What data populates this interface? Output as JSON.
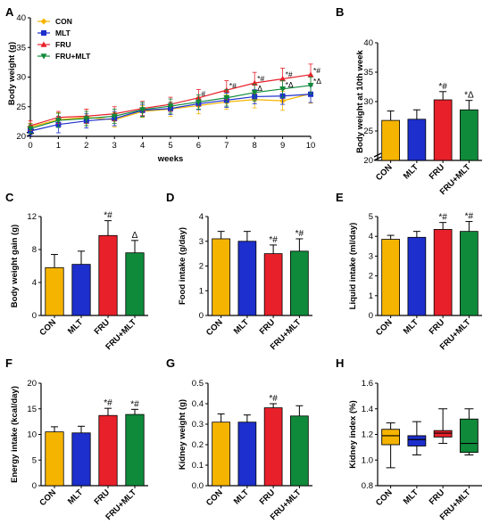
{
  "colors": {
    "CON": "#f5b400",
    "MLT": "#1d2fcc",
    "FRU": "#e8202a",
    "FRU+MLT": "#0f8a3a",
    "axis": "#000000"
  },
  "chart_data": [
    {
      "panel": "A",
      "type": "line",
      "xlabel": "weeks",
      "ylabel": "Body weight (g)",
      "xlim": [
        0,
        10
      ],
      "ylim": [
        20,
        40
      ],
      "axis_break": true,
      "x": [
        0,
        1,
        2,
        3,
        4,
        5,
        6,
        7,
        8,
        9,
        10
      ],
      "x_ticks": [
        "0",
        "1",
        "2",
        "3",
        "4",
        "5",
        "6",
        "7",
        "8",
        "9",
        "10"
      ],
      "y_ticks": [
        "20",
        "25",
        "30",
        "35",
        "40"
      ],
      "legend_position": "top-left",
      "series": [
        {
          "name": "CON",
          "marker": "diamond",
          "values": [
            21.6,
            22.8,
            23.2,
            22.8,
            24.2,
            24.6,
            25.2,
            25.8,
            26.2,
            26.0,
            27.2
          ],
          "err": [
            0.6,
            1.2,
            1.4,
            1.2,
            1.0,
            1.2,
            1.4,
            1.2,
            1.4,
            1.6,
            1.6
          ]
        },
        {
          "name": "MLT",
          "marker": "square",
          "values": [
            20.9,
            22.0,
            22.6,
            23.0,
            24.4,
            24.7,
            25.5,
            26.1,
            26.7,
            26.8,
            27.1
          ],
          "err": [
            0.8,
            1.4,
            1.2,
            1.2,
            1.0,
            1.0,
            1.0,
            1.2,
            1.2,
            1.4,
            1.4
          ]
        },
        {
          "name": "FRU",
          "marker": "triangle-up",
          "values": [
            21.8,
            23.2,
            23.4,
            23.8,
            24.7,
            25.4,
            26.5,
            27.8,
            29.0,
            29.7,
            30.4
          ],
          "err": [
            0.8,
            1.0,
            1.2,
            1.2,
            1.2,
            1.2,
            1.4,
            1.6,
            1.8,
            1.8,
            1.8
          ]
        },
        {
          "name": "FRU+MLT",
          "marker": "triangle-down",
          "values": [
            21.3,
            22.7,
            23.0,
            23.4,
            24.5,
            25.1,
            25.8,
            26.5,
            27.4,
            28.0,
            28.6
          ],
          "err": [
            0.8,
            1.2,
            1.2,
            1.2,
            1.2,
            1.2,
            1.2,
            1.4,
            1.4,
            1.4,
            1.4
          ]
        }
      ],
      "annotations": [
        {
          "x": 6,
          "text": "#",
          "series": "FRU"
        },
        {
          "x": 7,
          "text": "*#",
          "series": "FRU"
        },
        {
          "x": 8,
          "text": "*#",
          "series": "FRU"
        },
        {
          "x": 9,
          "text": "*#",
          "series": "FRU"
        },
        {
          "x": 10,
          "text": "*#",
          "series": "FRU"
        },
        {
          "x": 8,
          "text": "Δ",
          "series": "FRU+MLT"
        },
        {
          "x": 9,
          "text": "*Δ",
          "series": "FRU+MLT"
        },
        {
          "x": 10,
          "text": "*Δ",
          "series": "FRU+MLT"
        }
      ]
    },
    {
      "panel": "B",
      "type": "bar",
      "title": "",
      "ylabel": "Body weight at 10th week",
      "categories": [
        "CON",
        "MLT",
        "FRU",
        "FRU+MLT"
      ],
      "values": [
        26.8,
        27.0,
        30.3,
        28.6
      ],
      "err": [
        1.6,
        1.6,
        1.4,
        1.6
      ],
      "ylim": [
        20,
        40
      ],
      "y_ticks": [
        "20",
        "25",
        "30",
        "35",
        "40"
      ],
      "axis_break": true,
      "annotations": [
        "",
        "",
        "*#",
        "*Δ"
      ]
    },
    {
      "panel": "C",
      "type": "bar",
      "ylabel": "Body weight gain (g)",
      "categories": [
        "CON",
        "MLT",
        "FRU",
        "FRU+MLT"
      ],
      "values": [
        5.8,
        6.2,
        9.7,
        7.6
      ],
      "err": [
        1.6,
        1.6,
        1.8,
        1.5
      ],
      "ylim": [
        0,
        12
      ],
      "y_ticks": [
        "0",
        "4",
        "8",
        "12"
      ],
      "annotations": [
        "",
        "",
        "*#",
        "Δ"
      ]
    },
    {
      "panel": "D",
      "type": "bar",
      "ylabel": "Food intake (g/day)",
      "categories": [
        "CON",
        "MLT",
        "FRU",
        "FRU+MLT"
      ],
      "values": [
        3.1,
        3.0,
        2.5,
        2.6
      ],
      "err": [
        0.3,
        0.4,
        0.35,
        0.5
      ],
      "ylim": [
        0,
        4
      ],
      "y_ticks": [
        "0",
        "1",
        "2",
        "3",
        "4"
      ],
      "annotations": [
        "",
        "",
        "*#",
        "*#"
      ]
    },
    {
      "panel": "E",
      "type": "bar",
      "ylabel": "Liquid intake (ml/day)",
      "categories": [
        "CON",
        "MLT",
        "FRU",
        "FRU+MLT"
      ],
      "values": [
        3.85,
        3.95,
        4.35,
        4.25
      ],
      "err": [
        0.2,
        0.3,
        0.35,
        0.5
      ],
      "ylim": [
        0,
        5
      ],
      "y_ticks": [
        "0",
        "1",
        "2",
        "3",
        "4",
        "5"
      ],
      "annotations": [
        "",
        "",
        "*#",
        "*#"
      ]
    },
    {
      "panel": "F",
      "type": "bar",
      "ylabel": "Energy intake (kcal/day)",
      "categories": [
        "CON",
        "MLT",
        "FRU",
        "FRU+MLT"
      ],
      "values": [
        10.5,
        10.3,
        13.7,
        13.9
      ],
      "err": [
        1.0,
        1.3,
        1.4,
        1.0
      ],
      "ylim": [
        0,
        20
      ],
      "y_ticks": [
        "0",
        "5",
        "10",
        "15",
        "20"
      ],
      "annotations": [
        "",
        "",
        "*#",
        "*#"
      ]
    },
    {
      "panel": "G",
      "type": "bar",
      "ylabel": "Kidney weight (g)",
      "categories": [
        "CON",
        "MLT",
        "FRU",
        "FRU+MLT"
      ],
      "values": [
        0.31,
        0.31,
        0.38,
        0.34
      ],
      "err": [
        0.04,
        0.035,
        0.02,
        0.05
      ],
      "ylim": [
        0,
        0.5
      ],
      "y_ticks": [
        "0.0",
        "0.1",
        "0.2",
        "0.3",
        "0.4",
        "0.5"
      ],
      "annotations": [
        "",
        "",
        "*#",
        ""
      ]
    },
    {
      "panel": "H",
      "type": "box",
      "ylabel": "Kidney index (%)",
      "categories": [
        "CON",
        "MLT",
        "FRU",
        "FRU+MLT"
      ],
      "ylim": [
        0.8,
        1.6
      ],
      "y_ticks": [
        "0.8",
        "1.0",
        "1.2",
        "1.4",
        "1.6"
      ],
      "boxes": [
        {
          "min": 0.94,
          "q1": 1.12,
          "median": 1.19,
          "q3": 1.24,
          "max": 1.29
        },
        {
          "min": 1.04,
          "q1": 1.11,
          "median": 1.16,
          "q3": 1.19,
          "max": 1.3
        },
        {
          "min": 1.13,
          "q1": 1.18,
          "median": 1.21,
          "q3": 1.23,
          "max": 1.4
        },
        {
          "min": 1.04,
          "q1": 1.06,
          "median": 1.13,
          "q3": 1.32,
          "max": 1.4
        }
      ]
    }
  ]
}
